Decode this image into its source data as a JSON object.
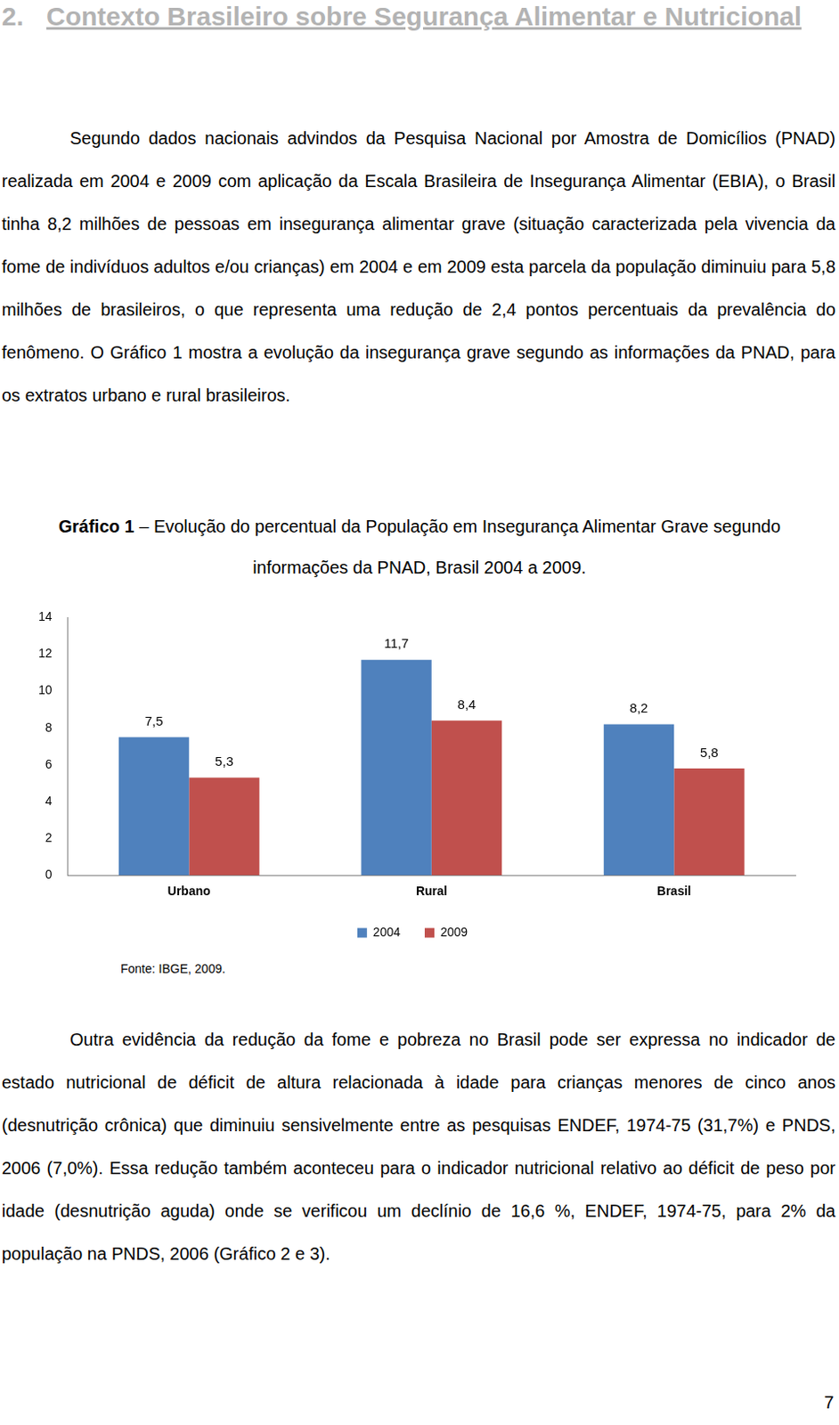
{
  "heading": {
    "number": "2.",
    "title": "Contexto Brasileiro sobre Segurança Alimentar e Nutricional"
  },
  "paragraphs": [
    "Segundo dados nacionais advindos da Pesquisa Nacional por Amostra de Domicílios (PNAD) realizada em 2004 e 2009 com aplicação da Escala Brasileira de Insegurança Alimentar (EBIA), o Brasil tinha 8,2 milhões de pessoas em insegurança alimentar grave (situação caracterizada pela vivencia da fome de indivíduos adultos e/ou crianças) em 2004 e em 2009 esta parcela da população diminuiu para 5,8 milhões de brasileiros, o que representa uma redução de 2,4 pontos percentuais da prevalência do fenômeno. O Gráfico 1 mostra a evolução da insegurança grave segundo as informações da PNAD, para os extratos urbano e rural brasileiros.",
    "Outra evidência da redução da fome e pobreza no Brasil pode ser expressa no indicador de estado nutricional de déficit de altura relacionada à idade para crianças menores de cinco anos (desnutrição crônica) que diminuiu sensivelmente entre as pesquisas ENDEF, 1974-75 (31,7%) e PNDS, 2006 (7,0%). Essa redução também aconteceu para o indicador nutricional relativo ao déficit de peso por idade (desnutrição aguda) onde se verificou um declínio de 16,6 %, ENDEF, 1974-75, para 2% da população na PNDS, 2006 (Gráfico 2 e 3)."
  ],
  "figure": {
    "label": "Gráfico 1",
    "caption": " – Evolução do percentual da População em Insegurança Alimentar Grave segundo informações da PNAD, Brasil 2004 a 2009.",
    "source": "Fonte: IBGE, 2009."
  },
  "page_number": "7",
  "chart_data": {
    "type": "bar",
    "categories": [
      "Urbano",
      "Rural",
      "Brasil"
    ],
    "series": [
      {
        "name": "2004",
        "color": "#4f81bd",
        "values": [
          7.5,
          11.7,
          8.2
        ],
        "value_labels": [
          "7,5",
          "11,7",
          "8,2"
        ]
      },
      {
        "name": "2009",
        "color": "#c0504d",
        "values": [
          5.3,
          8.4,
          5.8
        ],
        "value_labels": [
          "5,3",
          "8,4",
          "5,8"
        ]
      }
    ],
    "ylim": [
      0,
      14
    ],
    "yticks": [
      0,
      2,
      4,
      6,
      8,
      10,
      12,
      14
    ],
    "grid": false,
    "legend": "bottom",
    "data_labels": true
  }
}
